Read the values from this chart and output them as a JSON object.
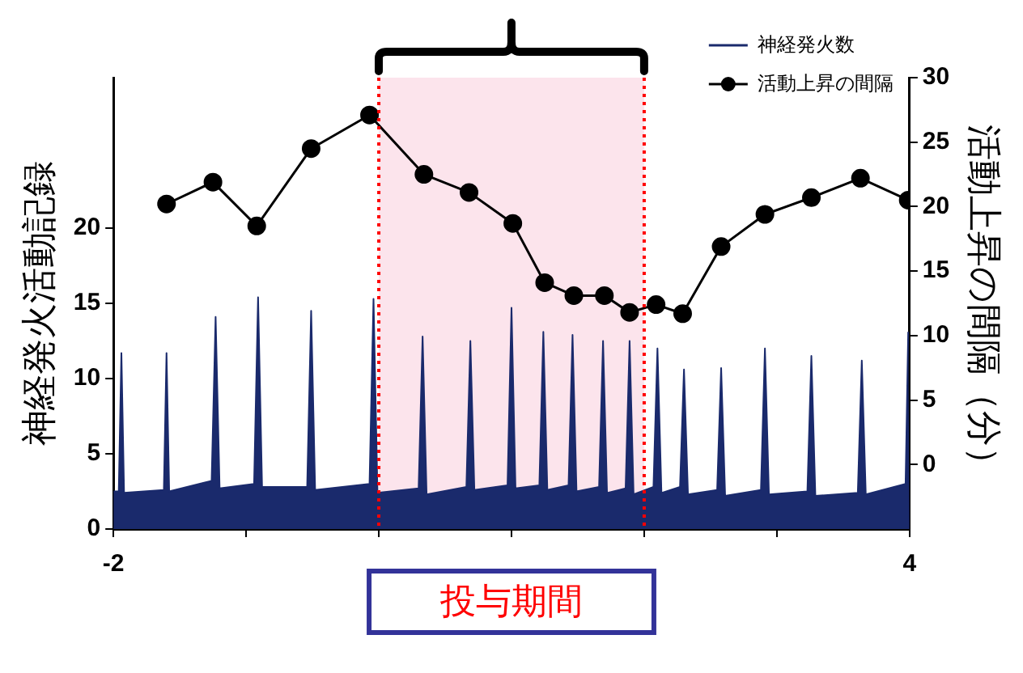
{
  "chart_data": {
    "type": "area",
    "ylabel": "神経発火活動記録",
    "y2label": "活動上昇の間隔（分）",
    "xlim": [
      -2,
      4
    ],
    "xticks": [
      -2,
      {
        "value": -1,
        "label": null
      },
      {
        "value": 0,
        "label": null
      },
      {
        "value": 1,
        "label": null
      },
      {
        "value": 2,
        "label": null
      },
      {
        "value": 3,
        "label": null
      },
      4
    ],
    "ylim": [
      0,
      30
    ],
    "yticks": [
      0,
      5,
      10,
      15,
      20
    ],
    "y2lim": [
      -5,
      30
    ],
    "y2ticks": [
      0,
      5,
      10,
      15,
      20,
      25,
      30
    ],
    "grid": false,
    "legend": "top right",
    "bands": [
      {
        "axis": "x",
        "from": 0,
        "to": 2,
        "label": "投与期間",
        "color": "#fce4ec"
      }
    ],
    "ref_lines": [
      {
        "axis": "x",
        "value": 0,
        "color": "#ff0000",
        "line_style": "dotted"
      },
      {
        "axis": "x",
        "value": 2,
        "color": "#ff0000",
        "line_style": "dotted"
      }
    ],
    "series": [
      {
        "name": "神経発火数",
        "color": "#1a2a6c",
        "x": [
          -2,
          -1.96,
          -1.94,
          -1.92,
          -1.62,
          -1.6,
          -1.58,
          -1.26,
          -1.23,
          -1.2,
          -0.94,
          -0.91,
          -0.88,
          -0.54,
          -0.51,
          -0.48,
          -0.07,
          -0.04,
          -0.01,
          0.3,
          0.33,
          0.36,
          0.66,
          0.69,
          0.72,
          0.97,
          1,
          1.03,
          1.21,
          1.24,
          1.27,
          1.43,
          1.46,
          1.49,
          1.66,
          1.69,
          1.72,
          1.86,
          1.89,
          1.92,
          2.07,
          2.1,
          2.13,
          2.27,
          2.3,
          2.33,
          2.55,
          2.58,
          2.61,
          2.88,
          2.91,
          2.94,
          3.23,
          3.26,
          3.29,
          3.61,
          3.64,
          3.67,
          3.97,
          3.99,
          4
        ],
        "values": [
          2.5,
          2.5,
          11.7,
          2.4,
          2.6,
          11.7,
          2.5,
          3.2,
          14.1,
          2.7,
          3,
          15.4,
          2.8,
          2.8,
          14.5,
          2.6,
          3,
          15.3,
          2.4,
          2.7,
          12.8,
          2.3,
          2.8,
          12.5,
          2.6,
          2.9,
          14.7,
          2.7,
          2.9,
          13.1,
          2.6,
          2.9,
          12.9,
          2.5,
          2.8,
          12.5,
          2.4,
          2.7,
          12.5,
          2.3,
          2.8,
          12,
          2.4,
          2.8,
          10.6,
          2.3,
          2.6,
          10.7,
          2.2,
          2.6,
          12,
          2.3,
          2.5,
          11.5,
          2.2,
          2.4,
          11.2,
          2.3,
          3,
          13.1,
          13.1
        ]
      },
      {
        "name": "活動上昇の間隔",
        "type": "line",
        "axis": "y2",
        "color": "#000000",
        "marker": "circle",
        "x": [
          -1.6,
          -1.25,
          -0.92,
          -0.51,
          -0.07,
          0.34,
          0.68,
          1.01,
          1.25,
          1.47,
          1.7,
          1.89,
          2.09,
          2.29,
          2.58,
          2.91,
          3.26,
          3.63,
          3.99
        ],
        "values": [
          20.2,
          21.9,
          18.5,
          24.5,
          27.1,
          22.5,
          21.1,
          18.7,
          14.1,
          13.1,
          13.1,
          11.8,
          12.4,
          11.7,
          16.9,
          19.4,
          20.7,
          22.2,
          20.5
        ]
      }
    ]
  }
}
